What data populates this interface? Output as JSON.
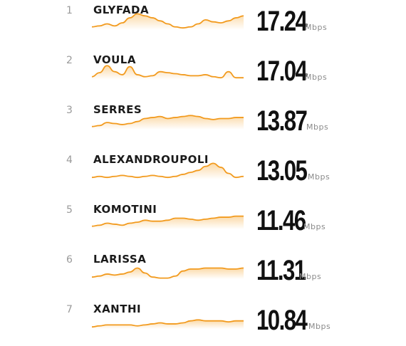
{
  "colors": {
    "line": "#f29a1d",
    "fill_top": "#fbd9a6",
    "fill_bottom": "#ffffff"
  },
  "chart_data": {
    "type": "table",
    "unit": "Mbps",
    "rows": [
      {
        "rank": "1",
        "city": "GLYFADA",
        "speed": "17.24",
        "trend": [
          3,
          4,
          6,
          4,
          7,
          12,
          16,
          14,
          12,
          9,
          6,
          3,
          2,
          3,
          6,
          10,
          8,
          7,
          9,
          12,
          14
        ]
      },
      {
        "rank": "2",
        "city": "VOULA",
        "speed": "17.04",
        "trend": [
          3,
          7,
          14,
          8,
          5,
          13,
          5,
          3,
          4,
          8,
          7,
          6,
          5,
          4,
          4,
          5,
          3,
          2,
          8,
          2,
          2
        ]
      },
      {
        "rank": "3",
        "city": "SERRES",
        "speed": "13.87",
        "trend": [
          3,
          4,
          7,
          6,
          5,
          6,
          8,
          11,
          12,
          13,
          11,
          12,
          13,
          14,
          13,
          11,
          10,
          11,
          11,
          12,
          12
        ]
      },
      {
        "rank": "4",
        "city": "ALEXANDROUPOLI",
        "speed": "13.05",
        "trend": [
          2,
          3,
          2,
          3,
          4,
          3,
          2,
          3,
          4,
          3,
          2,
          3,
          5,
          7,
          9,
          13,
          16,
          12,
          6,
          2,
          3
        ]
      },
      {
        "rank": "5",
        "city": "KOMOTINI",
        "speed": "11.46",
        "trend": [
          3,
          4,
          6,
          5,
          4,
          6,
          7,
          9,
          8,
          8,
          9,
          11,
          11,
          10,
          9,
          10,
          11,
          12,
          12,
          13,
          13
        ]
      },
      {
        "rank": "6",
        "city": "LARISSA",
        "speed": "11.31",
        "trend": [
          2,
          3,
          5,
          4,
          5,
          7,
          11,
          6,
          2,
          1,
          1,
          3,
          8,
          10,
          10,
          11,
          11,
          11,
          10,
          10,
          11
        ]
      },
      {
        "rank": "7",
        "city": "XANTHI",
        "speed": "10.84",
        "trend": [
          2,
          3,
          4,
          4,
          4,
          4,
          3,
          4,
          5,
          6,
          5,
          5,
          6,
          8,
          9,
          8,
          8,
          8,
          7,
          8,
          8
        ]
      }
    ]
  }
}
